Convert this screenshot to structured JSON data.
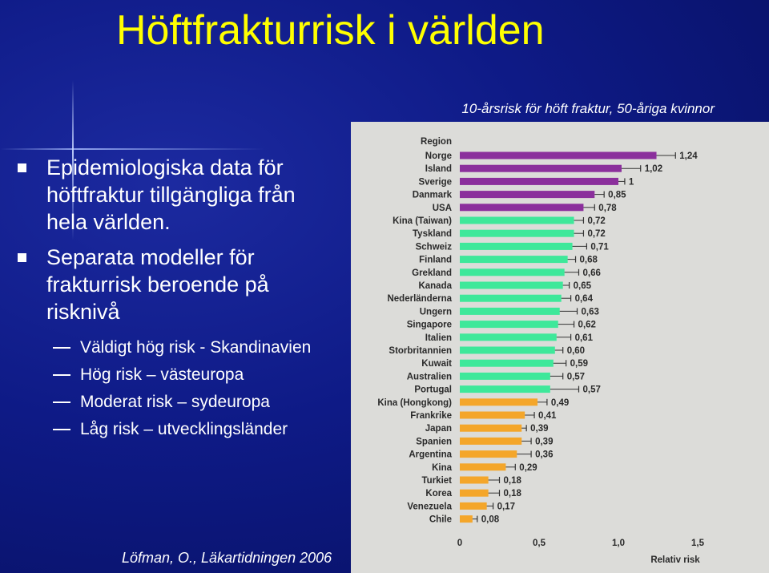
{
  "slide": {
    "title": "Höftfrakturrisk i världen",
    "source": "Löfman, O., Läkartidningen 2006",
    "bullets": [
      {
        "text": "Epidemiologiska data för höftfraktur tillgängliga från hela världen."
      },
      {
        "text": "Separata modeller för frakturrisk beroende på risknivå"
      }
    ],
    "sub_bullets": [
      {
        "text": "Väldigt hög risk - Skandinavien"
      },
      {
        "text": "Hög risk – västeuropa"
      },
      {
        "text": "Moderat risk – sydeuropa"
      },
      {
        "text": "Låg risk – utvecklingsländer"
      }
    ]
  },
  "chart_data": {
    "type": "bar",
    "orientation": "horizontal",
    "title": "10-årsrisk för höft fraktur, 50-åriga kvinnor",
    "category_header": "Region",
    "xlabel": "Relativ risk",
    "xlim": [
      0,
      1.5
    ],
    "xticks": [
      {
        "value": 0,
        "label": "0"
      },
      {
        "value": 0.5,
        "label": "0,5"
      },
      {
        "value": 1.0,
        "label": "1,0"
      },
      {
        "value": 1.5,
        "label": "1,5"
      }
    ],
    "error_bars": true,
    "colors": {
      "very_high": "#8b2f9c",
      "high": "#3ee89a",
      "moderate": "#f4a62a",
      "low": "#f4a62a"
    },
    "rows": [
      {
        "category": "Norge",
        "value": 1.24,
        "label": "1,24",
        "group": "very_high",
        "err": 0.12
      },
      {
        "category": "Island",
        "value": 1.02,
        "label": "1,02",
        "group": "very_high",
        "err": 0.12
      },
      {
        "category": "Sverige",
        "value": 1.0,
        "label": "1",
        "group": "very_high",
        "err": 0.04
      },
      {
        "category": "Danmark",
        "value": 0.85,
        "label": "0,85",
        "group": "very_high",
        "err": 0.06
      },
      {
        "category": "USA",
        "value": 0.78,
        "label": "0,78",
        "group": "very_high",
        "err": 0.07
      },
      {
        "category": "Kina (Taiwan)",
        "value": 0.72,
        "label": "0,72",
        "group": "high",
        "err": 0.06
      },
      {
        "category": "Tyskland",
        "value": 0.72,
        "label": "0,72",
        "group": "high",
        "err": 0.06
      },
      {
        "category": "Schweiz",
        "value": 0.71,
        "label": "0,71",
        "group": "high",
        "err": 0.09
      },
      {
        "category": "Finland",
        "value": 0.68,
        "label": "0,68",
        "group": "high",
        "err": 0.05
      },
      {
        "category": "Grekland",
        "value": 0.66,
        "label": "0,66",
        "group": "high",
        "err": 0.09
      },
      {
        "category": "Kanada",
        "value": 0.65,
        "label": "0,65",
        "group": "high",
        "err": 0.04
      },
      {
        "category": "Nederländerna",
        "value": 0.64,
        "label": "0,64",
        "group": "high",
        "err": 0.06
      },
      {
        "category": "Ungern",
        "value": 0.63,
        "label": "0,63",
        "group": "high",
        "err": 0.11
      },
      {
        "category": "Singapore",
        "value": 0.62,
        "label": "0,62",
        "group": "high",
        "err": 0.1
      },
      {
        "category": "Italien",
        "value": 0.61,
        "label": "0,61",
        "group": "high",
        "err": 0.09
      },
      {
        "category": "Storbritannien",
        "value": 0.6,
        "label": "0,60",
        "group": "high",
        "err": 0.05
      },
      {
        "category": "Kuwait",
        "value": 0.59,
        "label": "0,59",
        "group": "high",
        "err": 0.08
      },
      {
        "category": "Australien",
        "value": 0.57,
        "label": "0,57",
        "group": "high",
        "err": 0.08
      },
      {
        "category": "Portugal",
        "value": 0.57,
        "label": "0,57",
        "group": "high",
        "err": 0.18
      },
      {
        "category": "Kina (Hongkong)",
        "value": 0.49,
        "label": "0,49",
        "group": "moderate",
        "err": 0.06
      },
      {
        "category": "Frankrike",
        "value": 0.41,
        "label": "0,41",
        "group": "moderate",
        "err": 0.06
      },
      {
        "category": "Japan",
        "value": 0.39,
        "label": "0,39",
        "group": "moderate",
        "err": 0.03
      },
      {
        "category": "Spanien",
        "value": 0.39,
        "label": "0,39",
        "group": "moderate",
        "err": 0.06
      },
      {
        "category": "Argentina",
        "value": 0.36,
        "label": "0,36",
        "group": "moderate",
        "err": 0.09
      },
      {
        "category": "Kina",
        "value": 0.29,
        "label": "0,29",
        "group": "low",
        "err": 0.06
      },
      {
        "category": "Turkiet",
        "value": 0.18,
        "label": "0,18",
        "group": "low",
        "err": 0.07
      },
      {
        "category": "Korea",
        "value": 0.18,
        "label": "0,18",
        "group": "low",
        "err": 0.07
      },
      {
        "category": "Venezuela",
        "value": 0.17,
        "label": "0,17",
        "group": "low",
        "err": 0.04
      },
      {
        "category": "Chile",
        "value": 0.08,
        "label": "0,08",
        "group": "low",
        "err": 0.03
      }
    ]
  }
}
